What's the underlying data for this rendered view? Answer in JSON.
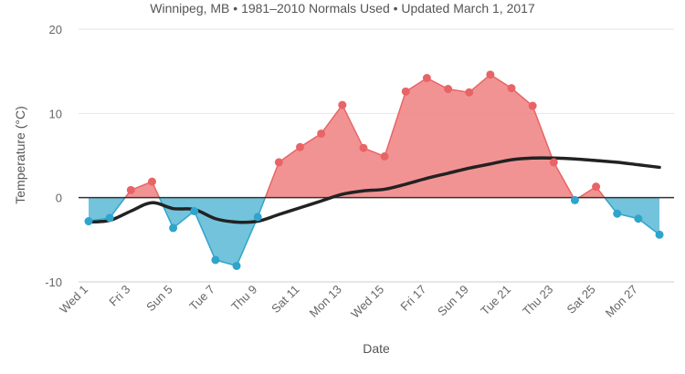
{
  "chart_data": {
    "type": "area",
    "subtitle": "Winnipeg, MB • 1981–2010 Normals Used • Updated March 1, 2017",
    "xlabel": "Date",
    "ylabel": "Temperature (°C)",
    "ylim": [
      -10,
      20
    ],
    "yticks": [
      -10,
      0,
      10,
      20
    ],
    "grid": true,
    "legend": "none",
    "x_days": [
      1,
      2,
      3,
      4,
      5,
      6,
      7,
      8,
      9,
      10,
      11,
      12,
      13,
      14,
      15,
      16,
      17,
      18,
      19,
      20,
      21,
      22,
      23,
      24,
      25,
      26,
      27,
      28
    ],
    "x_tick_labels": [
      "Wed 1",
      "Fri 3",
      "Sun 5",
      "Tue 7",
      "Thu 9",
      "Sat 11",
      "Mon 13",
      "Wed 15",
      "Fri 17",
      "Sun 19",
      "Tue 21",
      "Thu 23",
      "Sat 25",
      "Mon 27"
    ],
    "series": [
      {
        "values": [
          -2.8,
          -2.4,
          0.9,
          1.9,
          -3.6,
          -1.6,
          -7.4,
          -8.1,
          -2.3,
          4.2,
          6.0,
          7.6,
          11.0,
          5.9,
          4.9,
          12.6,
          14.2,
          12.9,
          12.5,
          14.6,
          13.0,
          10.9,
          4.2,
          -0.3,
          1.3,
          -1.9,
          -2.5,
          -4.4
        ],
        "color_above": "#f08080",
        "color_below": "#5bb8d6",
        "marker_above": "#e86467",
        "marker_below": "#2fa4cc"
      },
      {
        "values": [
          -2.9,
          -2.7,
          -1.6,
          -0.6,
          -1.3,
          -1.4,
          -2.5,
          -2.9,
          -2.8,
          -2.0,
          -1.2,
          -0.4,
          0.4,
          0.8,
          1.0,
          1.6,
          2.3,
          2.9,
          3.5,
          4.0,
          4.5,
          4.7,
          4.7,
          4.6,
          4.4,
          4.2,
          3.9,
          3.6
        ],
        "color": "#222222"
      }
    ]
  }
}
